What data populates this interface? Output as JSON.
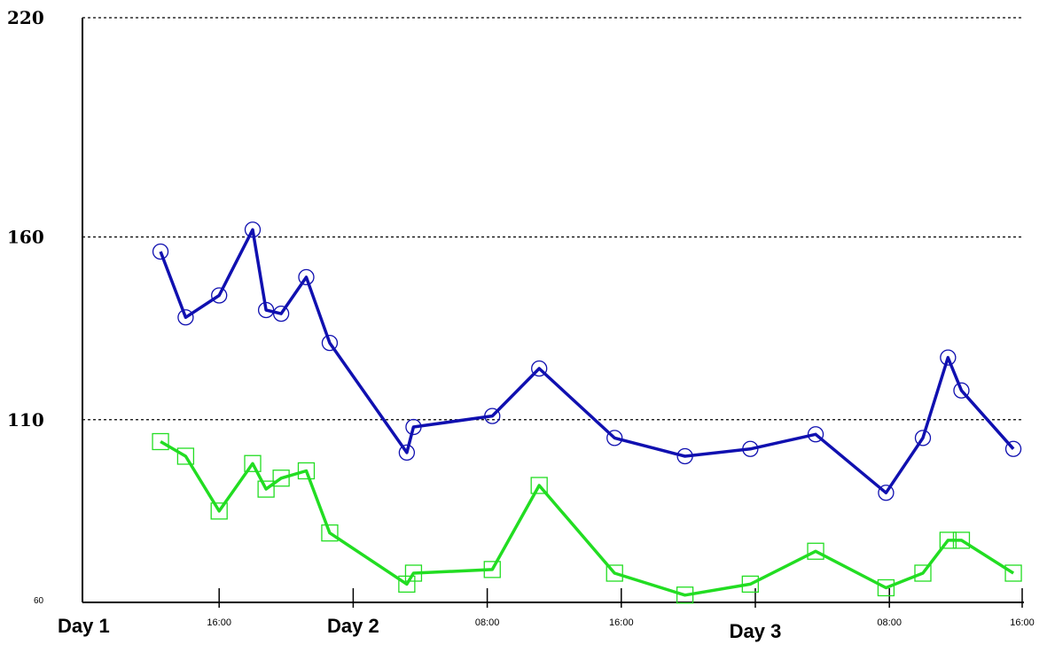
{
  "chart_data": {
    "type": "line",
    "title": "",
    "xlabel": "",
    "ylabel": "",
    "ylim": [
      60,
      220
    ],
    "xlim_hours": [
      0,
      54
    ],
    "grid": "dashed horizontal lines at 110, 160, 220",
    "y_ticks": [
      {
        "value": 220,
        "label": "220",
        "style": "major"
      },
      {
        "value": 160,
        "label": "160",
        "style": "major"
      },
      {
        "value": 110,
        "label": "110",
        "style": "major"
      },
      {
        "value": 60,
        "label": "60",
        "style": "minor"
      }
    ],
    "x_ticks": [
      {
        "hour": 0,
        "label": ""
      },
      {
        "hour": 8,
        "label": "16:00"
      },
      {
        "hour": 16,
        "label": ""
      },
      {
        "hour": 24,
        "label": "08:00"
      },
      {
        "hour": 32,
        "label": "16:00"
      },
      {
        "hour": 40,
        "label": ""
      },
      {
        "hour": 48,
        "label": "08:00"
      },
      {
        "hour": 56,
        "label": "16:00"
      }
    ],
    "day_labels": [
      {
        "hour": 0,
        "label": "Day 1"
      },
      {
        "hour": 16,
        "label": "Day 2"
      },
      {
        "hour": 40,
        "label": "Day 3"
      }
    ],
    "series": [
      {
        "color": "#1010b0",
        "marker": "circle",
        "points": [
          [
            4.5,
            156
          ],
          [
            6.0,
            138
          ],
          [
            8.0,
            144
          ],
          [
            10.0,
            162
          ],
          [
            10.8,
            140
          ],
          [
            11.7,
            139
          ],
          [
            13.2,
            149
          ],
          [
            14.6,
            131
          ],
          [
            19.2,
            101
          ],
          [
            19.6,
            108
          ],
          [
            24.3,
            111
          ],
          [
            27.1,
            124
          ],
          [
            31.6,
            105
          ],
          [
            35.8,
            100
          ],
          [
            39.7,
            102
          ],
          [
            43.6,
            106
          ],
          [
            47.8,
            90
          ],
          [
            50.0,
            105
          ],
          [
            51.5,
            127
          ],
          [
            52.3,
            118
          ],
          [
            55.4,
            102
          ]
        ]
      },
      {
        "color": "#22dd22",
        "marker": "square",
        "points": [
          [
            4.5,
            104
          ],
          [
            6.0,
            100
          ],
          [
            8.0,
            85
          ],
          [
            10.0,
            98
          ],
          [
            10.8,
            91
          ],
          [
            11.7,
            94
          ],
          [
            13.2,
            96
          ],
          [
            14.6,
            79
          ],
          [
            19.2,
            65
          ],
          [
            19.6,
            68
          ],
          [
            24.3,
            69
          ],
          [
            27.1,
            92
          ],
          [
            31.6,
            68
          ],
          [
            35.8,
            62
          ],
          [
            39.7,
            65
          ],
          [
            43.6,
            74
          ],
          [
            47.8,
            64
          ],
          [
            50.0,
            68
          ],
          [
            51.5,
            77
          ],
          [
            52.3,
            77
          ],
          [
            55.4,
            68
          ]
        ]
      }
    ]
  }
}
